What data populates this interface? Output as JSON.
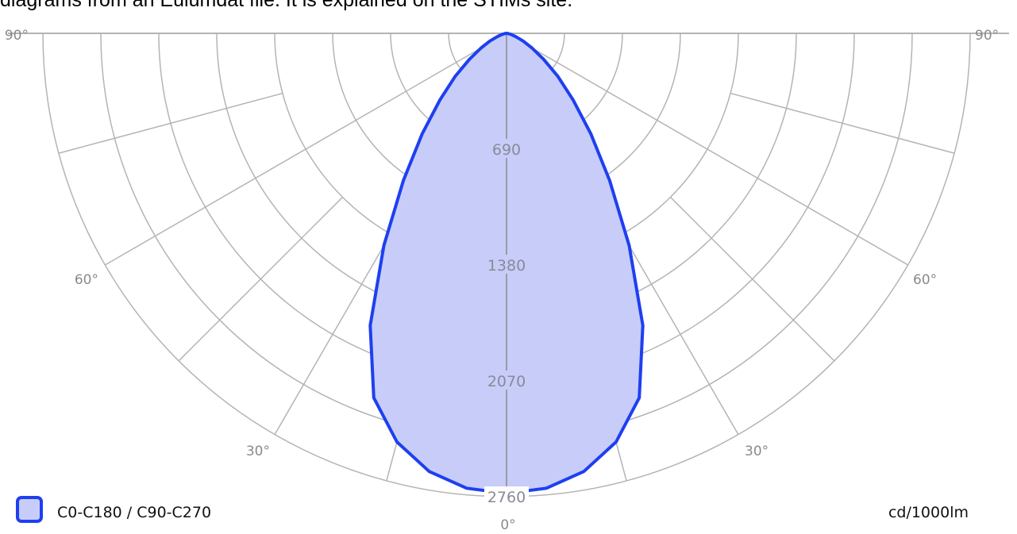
{
  "header": {
    "text": "diagrams from an Eulumdat file. It is explained on the STIMs site."
  },
  "chart_data": {
    "type": "polar",
    "title": "",
    "unit_label": "cd/1000lm",
    "angle_labels": [
      {
        "angle": -90,
        "text": "90°"
      },
      {
        "angle": -60,
        "text": "60°"
      },
      {
        "angle": -30,
        "text": "30°"
      },
      {
        "angle": 0,
        "text": "0°"
      },
      {
        "angle": 30,
        "text": "30°"
      },
      {
        "angle": 60,
        "text": "60°"
      },
      {
        "angle": 90,
        "text": "90°"
      }
    ],
    "radial_ticks": [
      690,
      1380,
      2070,
      2760
    ],
    "rmax": 2760,
    "colors": {
      "grid": "#b4b4b4",
      "series_stroke": "#1e3ff0",
      "series_fill": "#c7cdf8"
    },
    "series": [
      {
        "name": "C0-C180 / C90-C270",
        "angles": [
          0,
          5,
          10,
          15,
          20,
          25,
          30,
          35,
          40,
          45,
          50,
          55,
          60,
          65,
          70,
          75,
          80,
          85,
          90
        ],
        "values": [
          2740,
          2720,
          2650,
          2520,
          2310,
          1920,
          1460,
          1070,
          780,
          560,
          400,
          270,
          175,
          110,
          60,
          30,
          12,
          4,
          0
        ]
      }
    ]
  }
}
